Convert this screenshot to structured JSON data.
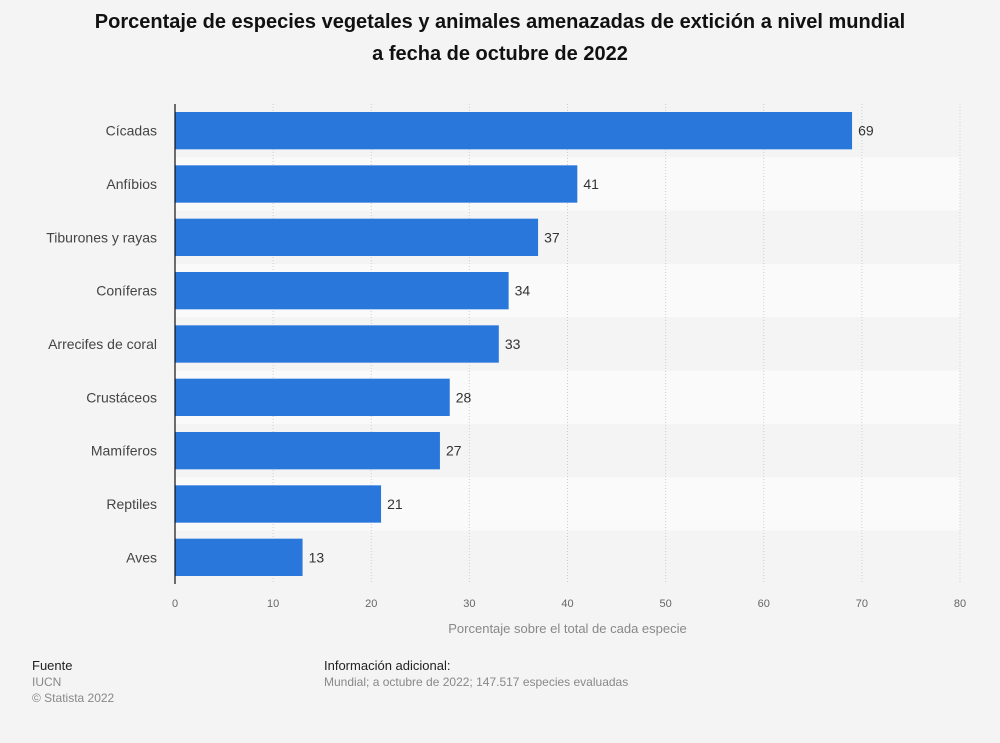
{
  "chart_data": {
    "type": "bar",
    "orientation": "horizontal",
    "title": "Porcentaje de especies vegetales y animales amenazadas de extición a nivel mundial a fecha de octubre de 2022",
    "title_lines": [
      "Porcentaje de especies vegetales y animales amenazadas de extición a nivel mundial",
      "a fecha de octubre de 2022"
    ],
    "categories": [
      "Cícadas",
      "Anfíbios",
      "Tiburones y rayas",
      "Coníferas",
      "Arrecifes de coral",
      "Crustáceos",
      "Mamíferos",
      "Reptiles",
      "Aves"
    ],
    "values": [
      69,
      41,
      37,
      34,
      33,
      28,
      27,
      21,
      13
    ],
    "xlabel": "Porcentaje sobre el total de cada especie",
    "ylabel": "",
    "xlim": [
      0,
      80
    ],
    "xticks": [
      0,
      10,
      20,
      30,
      40,
      50,
      60,
      70,
      80
    ],
    "grid": true,
    "bar_color": "#2a77dc"
  },
  "footer": {
    "source_heading": "Fuente",
    "source_lines": [
      "IUCN",
      "© Statista 2022"
    ],
    "info_heading": "Información adicional:",
    "info_text": "Mundial; a octubre de 2022; 147.517 especies evaluadas"
  }
}
